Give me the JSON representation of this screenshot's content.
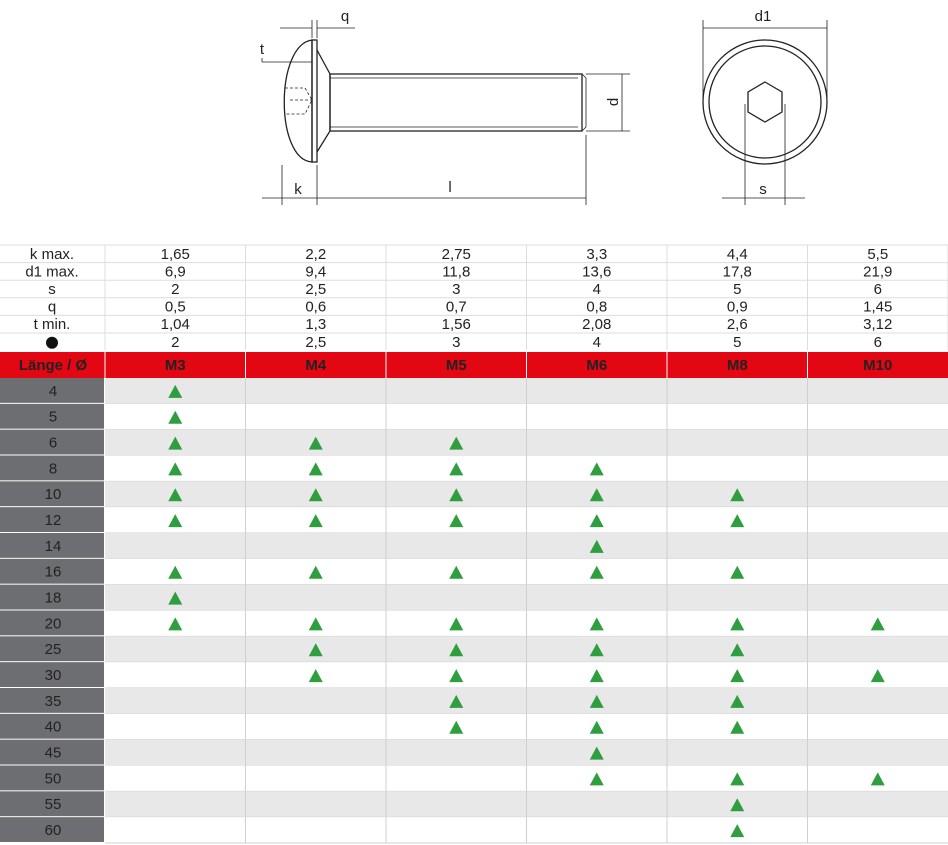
{
  "drawing": {
    "labels": {
      "q": "q",
      "t": "t",
      "d": "d",
      "k": "k",
      "l": "l",
      "d1": "d1",
      "s": "s"
    }
  },
  "specs": [
    {
      "label": "k max.",
      "values": [
        "1,65",
        "2,2",
        "2,75",
        "3,3",
        "4,4",
        "5,5"
      ]
    },
    {
      "label": "d1 max.",
      "values": [
        "6,9",
        "9,4",
        "11,8",
        "13,6",
        "17,8",
        "21,9"
      ]
    },
    {
      "label": "s",
      "values": [
        "2",
        "2,5",
        "3",
        "4",
        "5",
        "6"
      ]
    },
    {
      "label": "q",
      "values": [
        "0,5",
        "0,6",
        "0,7",
        "0,8",
        "0,9",
        "1,45"
      ]
    },
    {
      "label": "t min.",
      "values": [
        "1,04",
        "1,3",
        "1,56",
        "2,08",
        "2,6",
        "3,12"
      ]
    },
    {
      "values": [
        "2",
        "2,5",
        "3",
        "4",
        "5",
        "6"
      ]
    }
  ],
  "table": {
    "header": "Länge / Ø",
    "columns": [
      "M3",
      "M4",
      "M5",
      "M6",
      "M8",
      "M10"
    ],
    "rows": [
      {
        "length": 4,
        "available": [
          true,
          false,
          false,
          false,
          false,
          false
        ]
      },
      {
        "length": 5,
        "available": [
          true,
          false,
          false,
          false,
          false,
          false
        ]
      },
      {
        "length": 6,
        "available": [
          true,
          true,
          true,
          false,
          false,
          false
        ]
      },
      {
        "length": 8,
        "available": [
          true,
          true,
          true,
          true,
          false,
          false
        ]
      },
      {
        "length": 10,
        "available": [
          true,
          true,
          true,
          true,
          true,
          false
        ]
      },
      {
        "length": 12,
        "available": [
          true,
          true,
          true,
          true,
          true,
          false
        ]
      },
      {
        "length": 14,
        "available": [
          false,
          false,
          false,
          true,
          false,
          false
        ]
      },
      {
        "length": 16,
        "available": [
          true,
          true,
          true,
          true,
          true,
          false
        ]
      },
      {
        "length": 18,
        "available": [
          true,
          false,
          false,
          false,
          false,
          false
        ]
      },
      {
        "length": 20,
        "available": [
          true,
          true,
          true,
          true,
          true,
          true
        ]
      },
      {
        "length": 25,
        "available": [
          false,
          true,
          true,
          true,
          true,
          false
        ]
      },
      {
        "length": 30,
        "available": [
          false,
          true,
          true,
          true,
          true,
          true
        ]
      },
      {
        "length": 35,
        "available": [
          false,
          false,
          true,
          true,
          true,
          false
        ]
      },
      {
        "length": 40,
        "available": [
          false,
          false,
          true,
          true,
          true,
          false
        ]
      },
      {
        "length": 45,
        "available": [
          false,
          false,
          false,
          true,
          false,
          false
        ]
      },
      {
        "length": 50,
        "available": [
          false,
          false,
          false,
          true,
          true,
          true
        ]
      },
      {
        "length": 55,
        "available": [
          false,
          false,
          false,
          false,
          true,
          false
        ]
      },
      {
        "length": 60,
        "available": [
          false,
          false,
          false,
          false,
          true,
          false
        ]
      }
    ]
  }
}
